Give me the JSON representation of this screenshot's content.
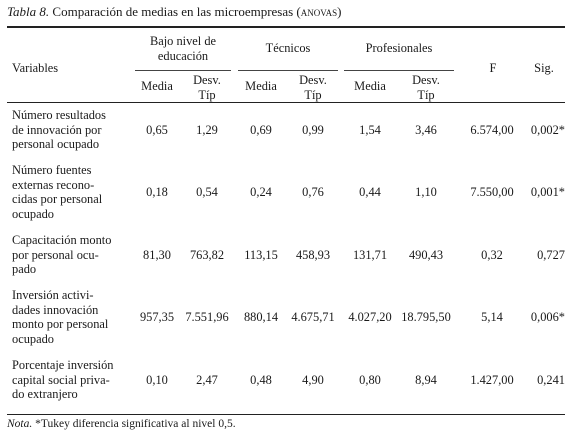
{
  "caption": {
    "label": "Tabla 8.",
    "text": " Comparación de medias en las microempresas (",
    "small_caps": "anovas",
    "close": ")"
  },
  "header": {
    "variables": "Variables",
    "groups": [
      "Bajo nivel de educación",
      "Técnicos",
      "Profesionales"
    ],
    "group_line2": "educación",
    "group_line1": "Bajo nivel de",
    "media": "Media",
    "desv_1": "Desv.",
    "desv_2": "Típ",
    "f": "F",
    "sig": "Sig."
  },
  "rows": [
    {
      "label": [
        "Número resultados",
        "de innovación por",
        "personal ocupado"
      ],
      "values": [
        "0,65",
        "1,29",
        "0,69",
        "0,99",
        "1,54",
        "3,46",
        "6.574,00",
        "0,002*"
      ]
    },
    {
      "label": [
        "Número fuentes",
        "externas recono-",
        "cidas por personal",
        "ocupado"
      ],
      "values": [
        "0,18",
        "0,54",
        "0,24",
        "0,76",
        "0,44",
        "1,10",
        "7.550,00",
        "0,001*"
      ]
    },
    {
      "label": [
        "Capacitación monto",
        "por personal ocu-",
        "pado"
      ],
      "values": [
        "81,30",
        "763,82",
        "113,15",
        "458,93",
        "131,71",
        "490,43",
        "0,32",
        "0,727"
      ]
    },
    {
      "label": [
        "Inversión activi-",
        "dades innovación",
        "monto por personal",
        "ocupado"
      ],
      "values": [
        "957,35",
        "7.551,96",
        "880,14",
        "4.675,71",
        "4.027,20",
        "18.795,50",
        "5,14",
        "0,006*"
      ]
    },
    {
      "label": [
        "Porcentaje inversión",
        "capital social priva-",
        "do extranjero"
      ],
      "values": [
        "0,10",
        "2,47",
        "0,48",
        "4,90",
        "0,80",
        "8,94",
        "1.427,00",
        "0,241"
      ]
    }
  ],
  "note": {
    "label": "Nota.",
    "text": " *Tukey diferencia significativa al nivel 0,5."
  }
}
